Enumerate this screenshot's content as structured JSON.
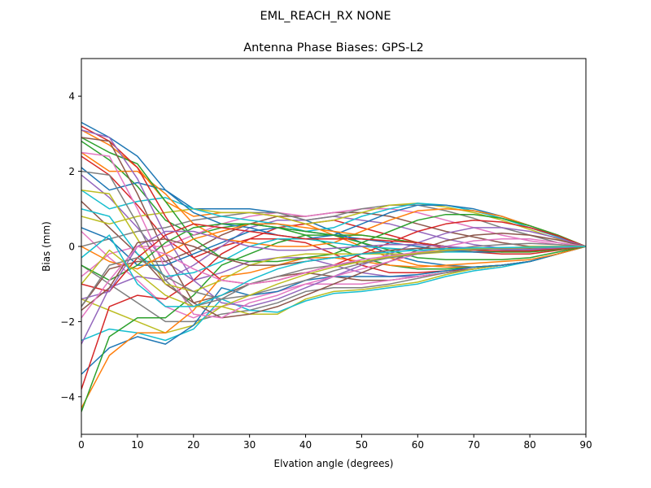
{
  "figure": {
    "suptitle": "EML_REACH_RX    NONE"
  },
  "chart_data": {
    "type": "line",
    "title": "Antenna Phase Biases: GPS-L2",
    "xlabel": "Elvation angle (degrees)",
    "ylabel": "Bias (mm)",
    "xlim": [
      0,
      90
    ],
    "ylim": [
      -5,
      5
    ],
    "xticks": [
      0,
      10,
      20,
      30,
      40,
      50,
      60,
      70,
      80,
      90
    ],
    "xtick_labels": [
      "0",
      "10",
      "20",
      "30",
      "40",
      "50",
      "60",
      "70",
      "80",
      "90"
    ],
    "yticks": [
      -4,
      -2,
      0,
      2,
      4
    ],
    "ytick_labels": [
      "−4",
      "−2",
      "0",
      "2",
      "4"
    ],
    "grid": false,
    "legend": "none",
    "x": [
      0,
      5,
      10,
      15,
      20,
      25,
      30,
      35,
      40,
      45,
      50,
      55,
      60,
      65,
      70,
      75,
      80,
      85,
      90
    ],
    "colors": [
      "#1f77b4",
      "#ff7f0e",
      "#2ca02c",
      "#d62728",
      "#9467bd",
      "#8c564b",
      "#e377c2",
      "#7f7f7f",
      "#bcbd22",
      "#17becf"
    ],
    "series": [
      {
        "values": [
          3.3,
          2.9,
          2.4,
          1.5,
          1.0,
          1.0,
          1.0,
          0.9,
          0.7,
          0.4,
          0.1,
          -0.2,
          -0.4,
          -0.5,
          -0.55,
          -0.5,
          -0.4,
          -0.2,
          0.0
        ]
      },
      {
        "values": [
          3.1,
          2.7,
          2.1,
          1.2,
          0.8,
          0.9,
          0.9,
          0.8,
          0.6,
          0.3,
          0.0,
          -0.3,
          -0.5,
          -0.55,
          -0.55,
          -0.5,
          -0.4,
          -0.2,
          0.0
        ]
      },
      {
        "values": [
          2.8,
          2.3,
          1.6,
          0.7,
          0.3,
          0.5,
          0.6,
          0.5,
          0.3,
          0.0,
          -0.3,
          -0.5,
          -0.6,
          -0.6,
          -0.55,
          -0.5,
          -0.4,
          -0.2,
          0.0
        ]
      },
      {
        "values": [
          2.4,
          1.9,
          1.1,
          0.2,
          -0.3,
          0.0,
          0.2,
          0.2,
          0.1,
          -0.2,
          -0.5,
          -0.7,
          -0.7,
          -0.65,
          -0.6,
          -0.5,
          -0.4,
          -0.2,
          0.0
        ]
      },
      {
        "values": [
          1.9,
          1.3,
          0.5,
          -0.4,
          -0.9,
          -0.7,
          -0.4,
          -0.3,
          -0.3,
          -0.5,
          -0.7,
          -0.8,
          -0.8,
          -0.7,
          -0.6,
          -0.5,
          -0.4,
          -0.2,
          0.0
        ]
      },
      {
        "values": [
          1.2,
          0.5,
          -0.2,
          -1.0,
          -1.5,
          -1.3,
          -1.0,
          -0.8,
          -0.7,
          -0.8,
          -0.9,
          -0.9,
          -0.8,
          -0.7,
          -0.6,
          -0.5,
          -0.4,
          -0.2,
          0.0
        ]
      },
      {
        "values": [
          0.4,
          -0.3,
          -0.9,
          -1.6,
          -1.9,
          -1.6,
          -1.4,
          -1.2,
          -1.0,
          -1.0,
          -1.0,
          -0.9,
          -0.8,
          -0.7,
          -0.6,
          -0.5,
          -0.4,
          -0.2,
          0.0
        ]
      },
      {
        "values": [
          -0.5,
          -1.0,
          -1.5,
          -2.0,
          -2.0,
          -1.8,
          -1.7,
          -1.5,
          -1.2,
          -1.1,
          -1.1,
          -1.0,
          -0.85,
          -0.7,
          -0.6,
          -0.5,
          -0.4,
          -0.2,
          0.0
        ]
      },
      {
        "values": [
          -1.4,
          -1.7,
          -2.0,
          -2.3,
          -2.1,
          -1.6,
          -1.8,
          -1.8,
          -1.4,
          -1.2,
          -1.15,
          -1.05,
          -0.95,
          -0.75,
          -0.6,
          -0.5,
          -0.4,
          -0.2,
          0.0
        ]
      },
      {
        "values": [
          -2.5,
          -2.2,
          -2.3,
          -2.5,
          -2.2,
          -1.4,
          -1.7,
          -1.75,
          -1.45,
          -1.25,
          -1.2,
          -1.1,
          -1.0,
          -0.8,
          -0.65,
          -0.55,
          -0.4,
          -0.2,
          0.0
        ]
      },
      {
        "values": [
          -3.4,
          -2.7,
          -2.4,
          -2.6,
          -2.1,
          -1.1,
          -1.3,
          -1.2,
          -0.9,
          -0.8,
          -0.8,
          -0.8,
          -0.75,
          -0.65,
          -0.55,
          -0.5,
          -0.4,
          -0.2,
          0.0
        ]
      },
      {
        "values": [
          -4.3,
          -2.9,
          -2.3,
          -2.3,
          -1.7,
          -0.8,
          -0.7,
          -0.5,
          -0.3,
          -0.3,
          -0.4,
          -0.5,
          -0.55,
          -0.5,
          -0.45,
          -0.4,
          -0.35,
          -0.2,
          0.0
        ]
      },
      {
        "values": [
          -4.4,
          -2.4,
          -1.9,
          -1.9,
          -1.3,
          -0.5,
          -0.2,
          0.1,
          0.3,
          0.3,
          0.1,
          -0.1,
          -0.3,
          -0.35,
          -0.35,
          -0.35,
          -0.3,
          -0.15,
          0.0
        ]
      },
      {
        "values": [
          -3.8,
          -1.6,
          -1.3,
          -1.4,
          -0.9,
          -0.2,
          0.2,
          0.5,
          0.6,
          0.7,
          0.5,
          0.3,
          0.1,
          -0.05,
          -0.15,
          -0.2,
          -0.2,
          -0.1,
          0.0
        ]
      },
      {
        "values": [
          -2.6,
          -1.1,
          -0.8,
          -0.9,
          -0.5,
          0.0,
          0.5,
          0.7,
          0.7,
          0.8,
          0.7,
          0.6,
          0.4,
          0.2,
          0.05,
          -0.05,
          -0.1,
          -0.05,
          0.0
        ]
      },
      {
        "values": [
          -1.6,
          -0.6,
          -0.4,
          -0.4,
          -0.1,
          0.3,
          0.6,
          0.8,
          0.8,
          0.9,
          0.9,
          0.8,
          0.6,
          0.4,
          0.25,
          0.1,
          0.0,
          0.0,
          0.0
        ]
      },
      {
        "values": [
          -0.8,
          -0.2,
          0.0,
          0.0,
          0.3,
          0.6,
          0.8,
          0.9,
          0.8,
          0.9,
          1.0,
          1.0,
          0.9,
          0.7,
          0.5,
          0.3,
          0.15,
          0.05,
          0.0
        ]
      },
      {
        "values": [
          0.0,
          0.2,
          0.4,
          0.5,
          0.7,
          0.8,
          0.9,
          0.9,
          0.7,
          0.8,
          1.0,
          1.1,
          1.1,
          0.95,
          0.75,
          0.5,
          0.3,
          0.1,
          0.0
        ]
      },
      {
        "values": [
          0.8,
          0.6,
          0.8,
          0.9,
          1.0,
          0.9,
          0.9,
          0.8,
          0.6,
          0.7,
          0.9,
          1.1,
          1.15,
          1.05,
          0.9,
          0.7,
          0.45,
          0.2,
          0.0
        ]
      },
      {
        "values": [
          1.5,
          1.0,
          1.2,
          1.3,
          1.0,
          0.8,
          0.7,
          0.6,
          0.4,
          0.5,
          0.8,
          1.0,
          1.15,
          1.1,
          0.95,
          0.75,
          0.5,
          0.25,
          0.0
        ]
      },
      {
        "values": [
          2.1,
          1.5,
          1.7,
          1.5,
          0.9,
          0.6,
          0.5,
          0.3,
          0.2,
          0.3,
          0.6,
          0.9,
          1.1,
          1.1,
          1.0,
          0.8,
          0.55,
          0.28,
          0.0
        ]
      },
      {
        "values": [
          2.5,
          2.0,
          2.0,
          1.4,
          0.6,
          0.2,
          0.1,
          0.0,
          0.0,
          0.1,
          0.4,
          0.7,
          0.95,
          1.0,
          0.95,
          0.8,
          0.55,
          0.3,
          0.0
        ]
      },
      {
        "values": [
          2.9,
          2.5,
          2.2,
          1.2,
          0.2,
          -0.3,
          -0.4,
          -0.4,
          -0.3,
          -0.2,
          0.1,
          0.4,
          0.7,
          0.85,
          0.85,
          0.75,
          0.55,
          0.3,
          0.0
        ]
      },
      {
        "values": [
          3.2,
          2.8,
          2.1,
          0.8,
          -0.3,
          -0.9,
          -1.0,
          -0.9,
          -0.7,
          -0.5,
          -0.2,
          0.1,
          0.4,
          0.6,
          0.7,
          0.65,
          0.5,
          0.28,
          0.0
        ]
      },
      {
        "values": [
          3.1,
          2.9,
          1.8,
          0.3,
          -0.9,
          -1.5,
          -1.6,
          -1.4,
          -1.1,
          -0.8,
          -0.5,
          -0.2,
          0.1,
          0.35,
          0.5,
          0.5,
          0.4,
          0.22,
          0.0
        ]
      },
      {
        "values": [
          2.9,
          2.8,
          1.4,
          -0.2,
          -1.5,
          -1.9,
          -1.8,
          -1.6,
          -1.3,
          -1.0,
          -0.7,
          -0.4,
          -0.1,
          0.15,
          0.3,
          0.35,
          0.3,
          0.17,
          0.0
        ]
      },
      {
        "values": [
          2.5,
          2.4,
          1.0,
          -0.6,
          -1.8,
          -1.9,
          -1.5,
          -1.3,
          -1.0,
          -0.8,
          -0.6,
          -0.4,
          -0.2,
          0.0,
          0.15,
          0.2,
          0.2,
          0.1,
          0.0
        ]
      },
      {
        "values": [
          2.0,
          1.9,
          0.6,
          -0.9,
          -1.6,
          -1.4,
          -1.0,
          -0.8,
          -0.6,
          -0.5,
          -0.4,
          -0.3,
          -0.2,
          -0.1,
          0.0,
          0.05,
          0.08,
          0.05,
          0.0
        ]
      },
      {
        "values": [
          1.5,
          1.4,
          0.2,
          -1.0,
          -1.2,
          -0.9,
          -0.5,
          -0.3,
          -0.2,
          -0.2,
          -0.2,
          -0.2,
          -0.2,
          -0.15,
          -0.1,
          -0.05,
          0.0,
          0.0,
          0.0
        ]
      },
      {
        "values": [
          1.0,
          0.8,
          -0.2,
          -0.8,
          -0.7,
          -0.4,
          0.0,
          0.2,
          0.2,
          0.1,
          0.0,
          -0.05,
          -0.1,
          -0.15,
          -0.15,
          -0.12,
          -0.08,
          -0.04,
          0.0
        ]
      },
      {
        "values": [
          0.5,
          0.2,
          -0.5,
          -0.5,
          -0.2,
          0.1,
          0.4,
          0.5,
          0.4,
          0.3,
          0.2,
          0.1,
          0.0,
          -0.1,
          -0.15,
          -0.15,
          -0.12,
          -0.06,
          0.0
        ]
      },
      {
        "values": [
          0.0,
          -0.4,
          -0.6,
          -0.2,
          0.2,
          0.4,
          0.6,
          0.6,
          0.5,
          0.4,
          0.3,
          0.2,
          0.1,
          0.0,
          -0.1,
          -0.15,
          -0.15,
          -0.08,
          0.0
        ]
      },
      {
        "values": [
          -0.5,
          -0.9,
          -0.5,
          0.1,
          0.5,
          0.6,
          0.6,
          0.5,
          0.4,
          0.3,
          0.3,
          0.2,
          0.1,
          0.0,
          -0.1,
          -0.15,
          -0.15,
          -0.08,
          0.0
        ]
      },
      {
        "values": [
          -1.0,
          -1.2,
          -0.3,
          0.3,
          0.6,
          0.5,
          0.4,
          0.3,
          0.2,
          0.2,
          0.2,
          0.15,
          0.1,
          0.0,
          -0.1,
          -0.12,
          -0.12,
          -0.06,
          0.0
        ]
      },
      {
        "values": [
          -1.4,
          -1.2,
          0.0,
          0.4,
          0.4,
          0.2,
          0.0,
          -0.1,
          -0.1,
          -0.05,
          0.0,
          0.05,
          0.05,
          0.0,
          -0.05,
          -0.08,
          -0.08,
          -0.04,
          0.0
        ]
      },
      {
        "values": [
          -1.7,
          -1.1,
          0.1,
          0.2,
          0.0,
          -0.3,
          -0.5,
          -0.5,
          -0.4,
          -0.3,
          -0.2,
          -0.1,
          -0.05,
          -0.05,
          -0.05,
          -0.05,
          -0.05,
          -0.02,
          0.0
        ]
      },
      {
        "values": [
          -1.9,
          -0.9,
          0.0,
          -0.2,
          -0.6,
          -0.9,
          -1.0,
          -0.9,
          -0.7,
          -0.5,
          -0.35,
          -0.25,
          -0.15,
          -0.1,
          -0.08,
          -0.06,
          -0.04,
          -0.02,
          0.0
        ]
      },
      {
        "values": [
          -1.6,
          -0.5,
          -0.3,
          -0.8,
          -1.2,
          -1.4,
          -1.3,
          -1.1,
          -0.9,
          -0.65,
          -0.45,
          -0.3,
          -0.2,
          -0.12,
          -0.08,
          -0.06,
          -0.04,
          -0.02,
          0.0
        ]
      },
      {
        "values": [
          -1.0,
          -0.1,
          -0.7,
          -1.3,
          -1.6,
          -1.6,
          -1.3,
          -1.0,
          -0.75,
          -0.55,
          -0.4,
          -0.28,
          -0.18,
          -0.1,
          -0.06,
          -0.04,
          -0.03,
          -0.01,
          0.0
        ]
      },
      {
        "values": [
          -0.3,
          0.3,
          -1.0,
          -1.6,
          -1.6,
          -1.3,
          -0.9,
          -0.6,
          -0.4,
          -0.3,
          -0.2,
          -0.15,
          -0.1,
          -0.06,
          -0.04,
          -0.03,
          -0.02,
          -0.01,
          0.0
        ]
      }
    ]
  }
}
